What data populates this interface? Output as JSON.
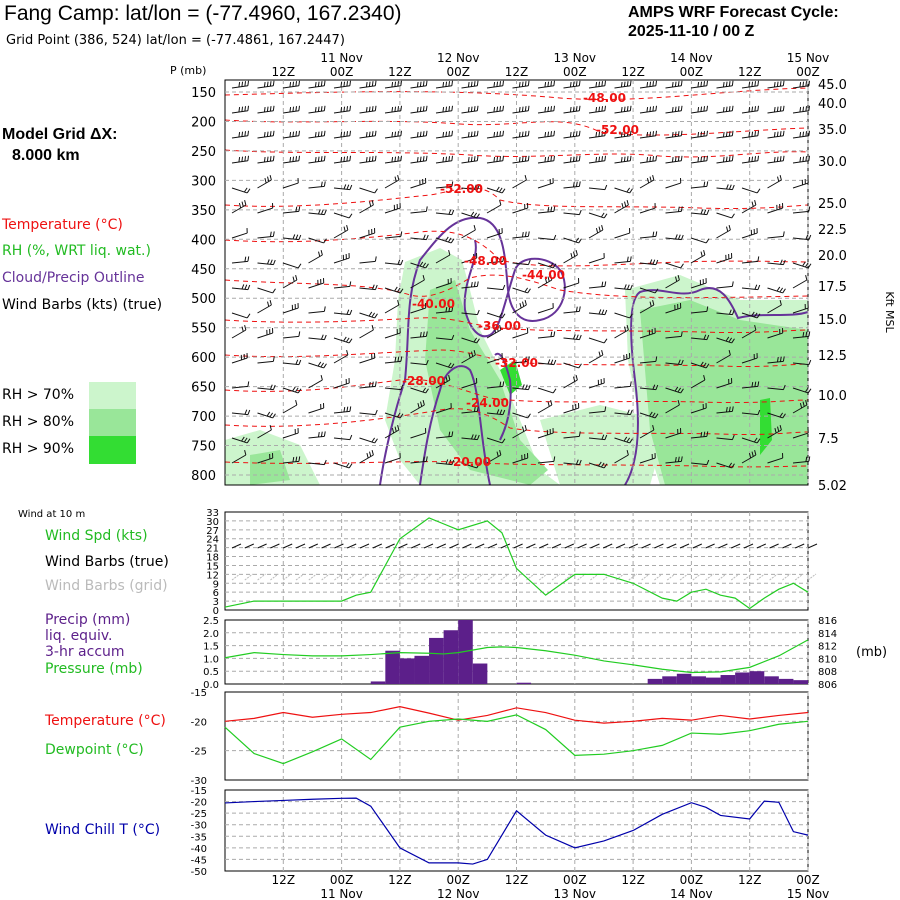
{
  "header": {
    "title": "Fang Camp:  lat/lon = (-77.4960, 167.2340)",
    "subtitle": "Grid Point (386, 524) lat/lon = (-77.4861, 167.2447)",
    "cycle_line1": "AMPS WRF Forecast Cycle:",
    "cycle_line2": "2025-11-10 / 00  Z"
  },
  "grid_info": {
    "line1": "Model Grid ΔX:",
    "line2": "8.000 km"
  },
  "legend": {
    "temperature": "Temperature (°C)",
    "rh": "RH (%, WRT liq. wat.)",
    "cloud": "Cloud/Precip Outline",
    "barbs": "Wind Barbs (kts) (true)",
    "rh70": "RH > 70%",
    "rh80": "RH > 80%",
    "rh90": "RH > 90%",
    "wind10m": "Wind at 10 m",
    "wspd": "Wind Spd (kts)",
    "barbs_true": "Wind Barbs (true)",
    "barbs_grid": "Wind Barbs (grid)",
    "precip1": "Precip (mm)",
    "precip2": "liq. equiv.",
    "precip3": "3-hr accum",
    "pressure": "Pressure (mb)",
    "temp2": "Temperature (°C)",
    "dewpoint": "Dewpoint (°C)",
    "windchill": "Wind Chill T (°C)"
  },
  "colors": {
    "temp": "#ee1111",
    "rh70": "#ccf5cc",
    "rh80": "#99e699",
    "rh90": "#33dd33",
    "cloud": "#663399",
    "green": "#22cc22",
    "blue": "#0000aa",
    "precip": "#5c1f8a",
    "grid": "#aaaaaa",
    "barb_grid": "#bbbbbb"
  },
  "chart_data": {
    "time": {
      "hours_start": 0,
      "hours_end": 120,
      "top_ticks": [
        "12Z",
        "00Z",
        "12Z",
        "00Z",
        "12Z",
        "00Z",
        "12Z",
        "00Z",
        "12Z",
        "00Z"
      ],
      "top_dates": [
        "11 Nov",
        "12 Nov",
        "13 Nov",
        "14 Nov",
        "15 Nov"
      ],
      "bottom_ticks": [
        "12Z",
        "00Z",
        "12Z",
        "00Z",
        "12Z",
        "00Z",
        "12Z",
        "00Z",
        "12Z",
        "00Z"
      ],
      "bottom_dates": [
        "11 Nov",
        "12 Nov",
        "13 Nov",
        "14 Nov",
        "15 Nov"
      ]
    },
    "profile": {
      "type": "time-height",
      "ylabel": "P (mb)",
      "right_label": "Kft MSL",
      "pressure_ticks": [
        "150",
        "200",
        "250",
        "300",
        "350",
        "400",
        "450",
        "500",
        "550",
        "600",
        "650",
        "700",
        "750",
        "800"
      ],
      "height_ticks": [
        "45.0",
        "40.0",
        "35.0",
        "30.0",
        "25.0",
        "22.5",
        "20.0",
        "17.5",
        "15.0",
        "12.5",
        "10.0",
        "7.5",
        "5.02"
      ],
      "temp_labels": [
        "-48.00",
        "-52.00",
        "-52.00",
        "-48.00",
        "-44.00",
        "-40.00",
        "-36.00",
        "-32.00",
        "-28.00",
        "-24.00",
        "-20.00"
      ]
    },
    "wind10m": {
      "type": "line",
      "yticks": [
        "33",
        "30",
        "27",
        "24",
        "21",
        "18",
        "15",
        "12",
        "9",
        "6",
        "3",
        "0"
      ],
      "ylim": [
        0,
        33
      ],
      "x": [
        0,
        6,
        12,
        18,
        24,
        27,
        30,
        36,
        42,
        45,
        48,
        54,
        57,
        60,
        66,
        72,
        78,
        84,
        90,
        93,
        96,
        99,
        102,
        105,
        108,
        111,
        114,
        117,
        120
      ],
      "speed": [
        1,
        3,
        3,
        3,
        3,
        5,
        6,
        24,
        31,
        29,
        27,
        30,
        26,
        14,
        5,
        12,
        12,
        9,
        4,
        3,
        6,
        7,
        5,
        4,
        0.5,
        4,
        7,
        9,
        6
      ]
    },
    "precip": {
      "type": "bar",
      "yticks": [
        "2.5",
        "2.0",
        "1.5",
        "1.0",
        "0.5",
        "0.0"
      ],
      "ylim": [
        0,
        2.5
      ],
      "bar_x": [
        33,
        36,
        39,
        42,
        45,
        48,
        51,
        54,
        63,
        90,
        93,
        96,
        99,
        102,
        105,
        108,
        111,
        114,
        117,
        120
      ],
      "bar_values": [
        0.1,
        1.3,
        1.0,
        1.1,
        1.8,
        2.1,
        2.5,
        0.8,
        0.05,
        0.2,
        0.3,
        0.4,
        0.3,
        0.25,
        0.35,
        0.45,
        0.5,
        0.3,
        0.2,
        0.15
      ],
      "pressure_ticks": [
        "816",
        "814",
        "812",
        "810",
        "808",
        "806"
      ],
      "pressure_ylim": [
        806,
        816
      ],
      "pressure_x": [
        0,
        6,
        12,
        18,
        24,
        30,
        36,
        42,
        45,
        48,
        54,
        57,
        60,
        66,
        72,
        78,
        84,
        90,
        96,
        102,
        108,
        114,
        120
      ],
      "pressure_values": [
        810.1,
        810.9,
        810.6,
        810.4,
        810.4,
        810.6,
        810.9,
        810.8,
        810.7,
        810.9,
        811.7,
        811.8,
        811.7,
        811.2,
        810.5,
        809.6,
        809.0,
        808.3,
        807.8,
        807.9,
        808.6,
        810.4,
        812.9
      ]
    },
    "temp_dew": {
      "type": "line",
      "yticks": [
        "-15",
        "-20",
        "-25",
        "-30"
      ],
      "ylim": [
        -30,
        -15
      ],
      "x": [
        0,
        6,
        12,
        18,
        24,
        30,
        36,
        42,
        48,
        54,
        60,
        66,
        72,
        78,
        84,
        90,
        96,
        102,
        108,
        114,
        120
      ],
      "temperature": [
        -20.0,
        -19.5,
        -18.5,
        -19.3,
        -18.8,
        -18.5,
        -17.5,
        -18.6,
        -19.8,
        -19.0,
        -17.7,
        -18.5,
        -19.8,
        -20.3,
        -20.0,
        -19.5,
        -19.8,
        -19.0,
        -19.6,
        -19.0,
        -18.5
      ],
      "dewpoint": [
        -21.0,
        -25.5,
        -27.2,
        -25.2,
        -23.0,
        -26.5,
        -21.0,
        -20.0,
        -19.6,
        -20.0,
        -18.9,
        -21.4,
        -25.8,
        -25.6,
        -25.0,
        -24.1,
        -22.0,
        -22.2,
        -21.6,
        -20.5,
        -20.0
      ]
    },
    "windchill": {
      "type": "line",
      "yticks": [
        "-15",
        "-20",
        "-25",
        "-30",
        "-35",
        "-40",
        "-45",
        "-50"
      ],
      "ylim": [
        -50,
        -15
      ],
      "x": [
        0,
        6,
        12,
        18,
        24,
        27,
        30,
        33,
        36,
        42,
        48,
        51,
        54,
        60,
        66,
        72,
        78,
        84,
        90,
        96,
        99,
        102,
        108,
        111,
        114,
        117,
        120
      ],
      "values": [
        -20.6,
        -20.0,
        -19.5,
        -19.0,
        -18.6,
        -18.5,
        -22.0,
        -31.0,
        -40.0,
        -46.5,
        -46.5,
        -47.0,
        -45.0,
        -24.0,
        -34.5,
        -40.0,
        -37.0,
        -32.5,
        -25.5,
        -20.5,
        -22.5,
        -26.0,
        -27.5,
        -19.8,
        -20.3,
        -33.0,
        -34.5
      ]
    }
  }
}
